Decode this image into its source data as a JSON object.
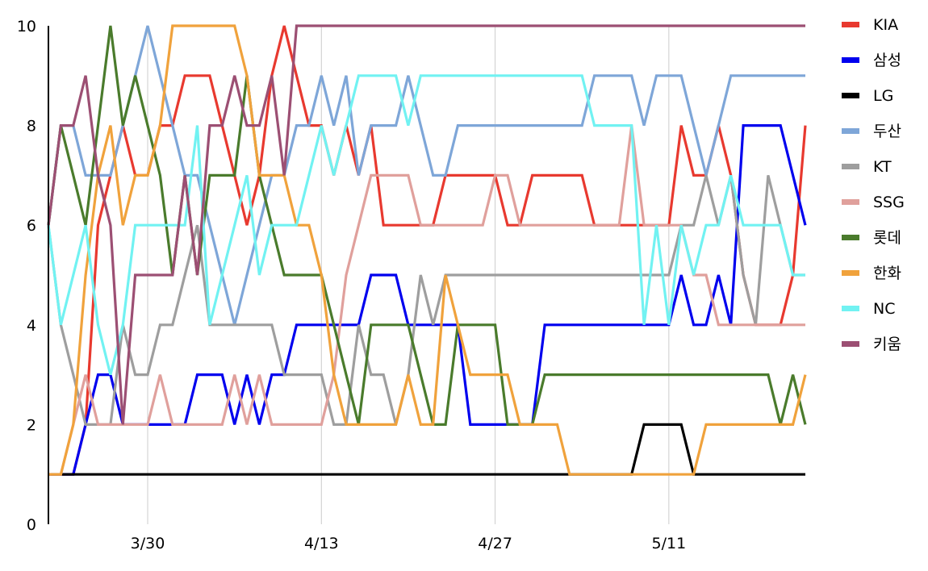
{
  "chart_data": {
    "type": "line",
    "title": "",
    "xlabel": "",
    "ylabel": "",
    "ylim": [
      0,
      10
    ],
    "y_ticks": [
      "0",
      "2",
      "4",
      "6",
      "8",
      "10"
    ],
    "x_ticks": [
      {
        "label": "3/30",
        "day": 8
      },
      {
        "label": "4/13",
        "day": 22
      },
      {
        "label": "4/27",
        "day": 36
      },
      {
        "label": "5/11",
        "day": 50
      }
    ],
    "grid": "vertical lines at x ticks",
    "legend_position": "right",
    "x": [
      0,
      1,
      2,
      3,
      4,
      5,
      6,
      7,
      8,
      9,
      10,
      11,
      12,
      13,
      14,
      15,
      16,
      17,
      18,
      19,
      20,
      21,
      22,
      23,
      24,
      25,
      26,
      27,
      28,
      29,
      30,
      31,
      32,
      33,
      34,
      35,
      36,
      37,
      38,
      39,
      40,
      41,
      42,
      43,
      44,
      45,
      46,
      47,
      48,
      49,
      50,
      51,
      52,
      53,
      54,
      55,
      56,
      57,
      58,
      59,
      60,
      61
    ],
    "series": [
      {
        "name": "KIA",
        "color": "#e8392f",
        "values": [
          1,
          1,
          1,
          2,
          6,
          7,
          8,
          7,
          7,
          8,
          8,
          9,
          9,
          9,
          8,
          7,
          6,
          7,
          9,
          10,
          9,
          8,
          8,
          7,
          8,
          7,
          8,
          6,
          6,
          6,
          6,
          6,
          7,
          7,
          7,
          7,
          7,
          6,
          6,
          7,
          7,
          7,
          7,
          7,
          6,
          6,
          6,
          6,
          6,
          6,
          6,
          8,
          7,
          7,
          8,
          7,
          5,
          4,
          4,
          4,
          5,
          8
        ]
      },
      {
        "name": "삼성",
        "color": "#0000ee",
        "values": [
          1,
          1,
          1,
          2,
          3,
          3,
          2,
          2,
          2,
          2,
          2,
          2,
          3,
          3,
          3,
          2,
          3,
          2,
          3,
          3,
          4,
          4,
          4,
          4,
          4,
          4,
          5,
          5,
          5,
          4,
          4,
          4,
          4,
          4,
          2,
          2,
          2,
          2,
          2,
          2,
          4,
          4,
          4,
          4,
          4,
          4,
          4,
          4,
          4,
          4,
          4,
          5,
          4,
          4,
          5,
          4,
          8,
          8,
          8,
          8,
          7,
          6
        ]
      },
      {
        "name": "LG",
        "color": "#000000",
        "values": [
          1,
          1,
          1,
          1,
          1,
          1,
          1,
          1,
          1,
          1,
          1,
          1,
          1,
          1,
          1,
          1,
          1,
          1,
          1,
          1,
          1,
          1,
          1,
          1,
          1,
          1,
          1,
          1,
          1,
          1,
          1,
          1,
          1,
          1,
          1,
          1,
          1,
          1,
          1,
          1,
          1,
          1,
          1,
          1,
          1,
          1,
          1,
          1,
          2,
          2,
          2,
          2,
          1,
          1,
          1,
          1,
          1,
          1,
          1,
          1,
          1,
          1
        ]
      },
      {
        "name": "두산",
        "color": "#7ea6d8",
        "values": [
          6,
          8,
          8,
          7,
          7,
          7,
          8,
          9,
          10,
          9,
          8,
          7,
          7,
          6,
          5,
          4,
          5,
          6,
          7,
          7,
          8,
          8,
          9,
          8,
          9,
          7,
          8,
          8,
          8,
          9,
          8,
          7,
          7,
          8,
          8,
          8,
          8,
          8,
          8,
          8,
          8,
          8,
          8,
          8,
          9,
          9,
          9,
          9,
          8,
          9,
          9,
          9,
          8,
          7,
          8,
          9,
          9,
          9,
          9,
          9,
          9,
          9
        ]
      },
      {
        "name": "KT",
        "color": "#9e9e9e",
        "values": [
          6,
          4,
          3,
          2,
          2,
          2,
          4,
          3,
          3,
          4,
          4,
          5,
          6,
          4,
          4,
          4,
          4,
          4,
          4,
          3,
          3,
          3,
          3,
          2,
          2,
          4,
          3,
          3,
          2,
          3,
          5,
          4,
          5,
          5,
          5,
          5,
          5,
          5,
          5,
          5,
          5,
          5,
          5,
          5,
          5,
          5,
          5,
          5,
          5,
          5,
          5,
          6,
          6,
          7,
          6,
          7,
          5,
          4,
          7,
          6,
          5,
          5
        ]
      },
      {
        "name": "SSG",
        "color": "#e0a09c",
        "values": [
          1,
          1,
          2,
          3,
          2,
          2,
          2,
          2,
          2,
          3,
          2,
          2,
          2,
          2,
          2,
          3,
          2,
          3,
          2,
          2,
          2,
          2,
          2,
          3,
          5,
          6,
          7,
          7,
          7,
          7,
          6,
          6,
          6,
          6,
          6,
          6,
          7,
          7,
          6,
          6,
          6,
          6,
          6,
          6,
          6,
          6,
          6,
          8,
          6,
          6,
          6,
          6,
          5,
          5,
          4,
          4,
          4,
          4,
          4,
          4,
          4,
          4
        ]
      },
      {
        "name": "롯데",
        "color": "#4a7b2c",
        "values": [
          6,
          8,
          7,
          6,
          8,
          10,
          8,
          9,
          8,
          7,
          5,
          7,
          5,
          7,
          7,
          7,
          9,
          7,
          6,
          5,
          5,
          5,
          5,
          4,
          3,
          2,
          4,
          4,
          4,
          4,
          3,
          2,
          2,
          4,
          4,
          4,
          4,
          2,
          2,
          2,
          3,
          3,
          3,
          3,
          3,
          3,
          3,
          3,
          3,
          3,
          3,
          3,
          3,
          3,
          3,
          3,
          3,
          3,
          3,
          2,
          3,
          2
        ]
      },
      {
        "name": "한화",
        "color": "#f0a23c",
        "values": [
          1,
          1,
          2,
          5,
          7,
          8,
          6,
          7,
          7,
          8,
          10,
          10,
          10,
          10,
          10,
          10,
          9,
          7,
          7,
          7,
          6,
          6,
          5,
          3,
          2,
          2,
          2,
          2,
          2,
          3,
          2,
          2,
          5,
          4,
          3,
          3,
          3,
          3,
          2,
          2,
          2,
          2,
          1,
          1,
          1,
          1,
          1,
          1,
          1,
          1,
          1,
          1,
          1,
          2,
          2,
          2,
          2,
          2,
          2,
          2,
          2,
          3
        ]
      },
      {
        "name": "NC",
        "color": "#71f2f2",
        "values": [
          6,
          4,
          5,
          6,
          4,
          3,
          4,
          6,
          6,
          6,
          6,
          6,
          8,
          4,
          5,
          6,
          7,
          5,
          6,
          6,
          6,
          7,
          8,
          7,
          8,
          9,
          9,
          9,
          9,
          8,
          9,
          9,
          9,
          9,
          9,
          9,
          9,
          9,
          9,
          9,
          9,
          9,
          9,
          9,
          8,
          8,
          8,
          8,
          4,
          6,
          4,
          6,
          5,
          6,
          6,
          7,
          6,
          6,
          6,
          6,
          5,
          5
        ]
      },
      {
        "name": "키움",
        "color": "#9c4f73",
        "values": [
          6,
          8,
          8,
          9,
          7,
          6,
          2,
          5,
          5,
          5,
          5,
          7,
          5,
          8,
          8,
          9,
          8,
          8,
          9,
          7,
          10,
          10,
          10,
          10,
          10,
          10,
          10,
          10,
          10,
          10,
          10,
          10,
          10,
          10,
          10,
          10,
          10,
          10,
          10,
          10,
          10,
          10,
          10,
          10,
          10,
          10,
          10,
          10,
          10,
          10,
          10,
          10,
          10,
          10,
          10,
          10,
          10,
          10,
          10,
          10,
          10,
          10
        ]
      }
    ]
  }
}
